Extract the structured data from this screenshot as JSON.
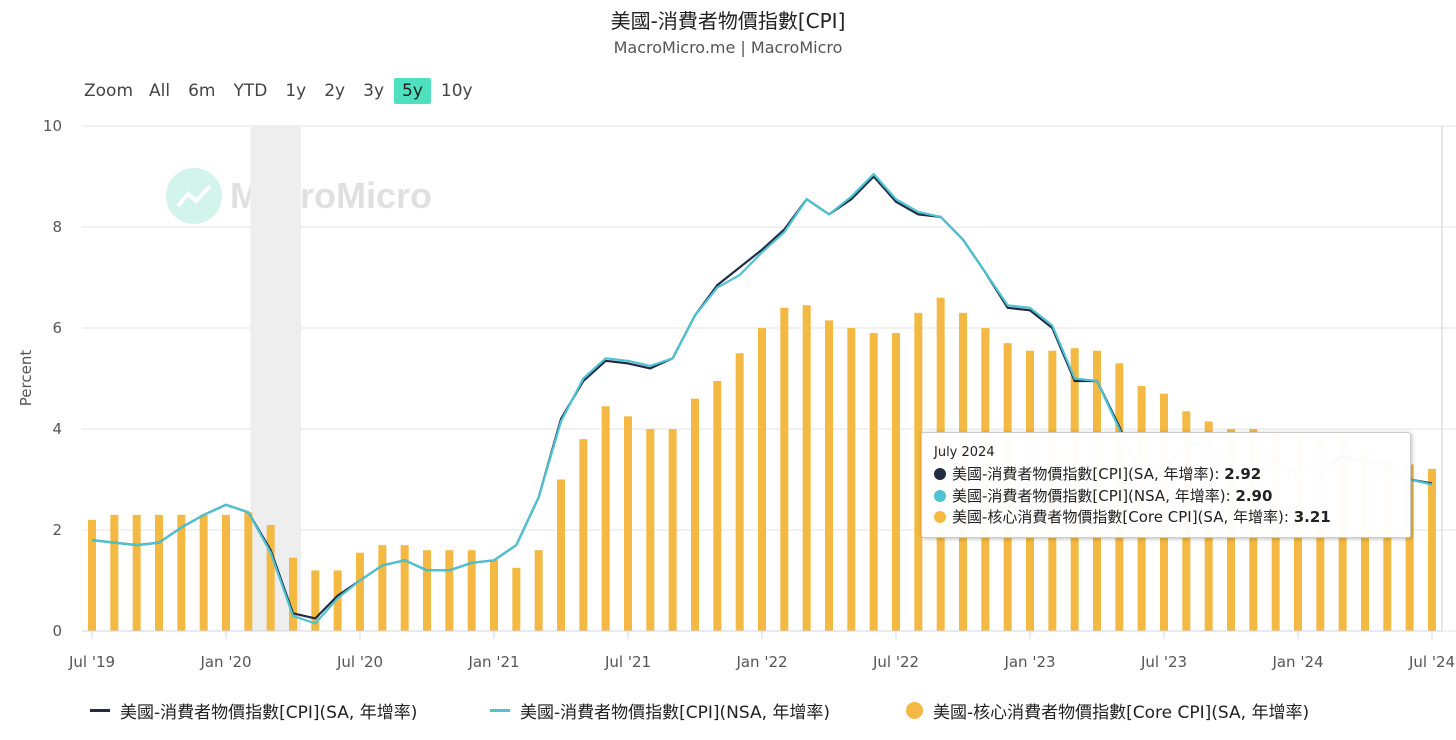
{
  "title": "美國-消費者物價指數[CPI]",
  "subtitle": "MacroMicro.me | MacroMicro",
  "watermark": "MacroMicro",
  "zoom": {
    "label": "Zoom",
    "options": [
      "All",
      "6m",
      "YTD",
      "1y",
      "2y",
      "3y",
      "5y",
      "10y"
    ],
    "selected": "5y"
  },
  "colors": {
    "sa": "#222b44",
    "nsa": "#4dc3d3",
    "core": "#f4b942",
    "recession": "#eeeeee",
    "zoom_active": "#4fe0bf"
  },
  "tooltip": {
    "header": "July 2024",
    "rows": [
      {
        "label": "美國-消費者物價指數[CPI](SA, 年增率)",
        "value": "2.92",
        "color": "#222b44"
      },
      {
        "label": "美國-消費者物價指數[CPI](NSA, 年增率)",
        "value": "2.90",
        "color": "#4dc3d3"
      },
      {
        "label": "美國-核心消費者物價指數[Core CPI](SA, 年增率)",
        "value": "3.21",
        "color": "#f4b942"
      }
    ]
  },
  "legend": [
    {
      "label": "美國-消費者物價指數[CPI](SA, 年增率)",
      "color": "#222b44",
      "type": "line"
    },
    {
      "label": "美國-消費者物價指數[CPI](NSA, 年增率)",
      "color": "#4dc3d3",
      "type": "line"
    },
    {
      "label": "美國-核心消費者物價指數[Core CPI](SA, 年增率)",
      "color": "#f4b942",
      "type": "dot"
    }
  ],
  "chart_data": {
    "type": "bar",
    "ylabel": "Percent",
    "ylim": [
      0,
      10
    ],
    "yticks": [
      0,
      2,
      4,
      6,
      8,
      10
    ],
    "xtick_labels": [
      "Jul '19",
      "Jan '20",
      "Jul '20",
      "Jan '21",
      "Jul '21",
      "Jan '22",
      "Jul '22",
      "Jan '23",
      "Jul '23",
      "Jan '24",
      "Jul '24"
    ],
    "grid": true,
    "legend_position": "bottom",
    "recession_band": [
      "2020-02",
      "2020-04"
    ],
    "x": [
      "2019-07",
      "2019-08",
      "2019-09",
      "2019-10",
      "2019-11",
      "2019-12",
      "2020-01",
      "2020-02",
      "2020-03",
      "2020-04",
      "2020-05",
      "2020-06",
      "2020-07",
      "2020-08",
      "2020-09",
      "2020-10",
      "2020-11",
      "2020-12",
      "2021-01",
      "2021-02",
      "2021-03",
      "2021-04",
      "2021-05",
      "2021-06",
      "2021-07",
      "2021-08",
      "2021-09",
      "2021-10",
      "2021-11",
      "2021-12",
      "2022-01",
      "2022-02",
      "2022-03",
      "2022-04",
      "2022-05",
      "2022-06",
      "2022-07",
      "2022-08",
      "2022-09",
      "2022-10",
      "2022-11",
      "2022-12",
      "2023-01",
      "2023-02",
      "2023-03",
      "2023-04",
      "2023-05",
      "2023-06",
      "2023-07",
      "2023-08",
      "2023-09",
      "2023-10",
      "2023-11",
      "2023-12",
      "2024-01",
      "2024-02",
      "2024-03",
      "2024-04",
      "2024-05",
      "2024-06",
      "2024-07"
    ],
    "series": [
      {
        "name": "美國-消費者物價指數[CPI](SA, 年增率)",
        "type": "line",
        "values": [
          1.8,
          1.75,
          1.7,
          1.75,
          2.05,
          2.3,
          2.5,
          2.35,
          1.6,
          0.35,
          0.25,
          0.7,
          1.0,
          1.3,
          1.4,
          1.2,
          1.2,
          1.35,
          1.4,
          1.7,
          2.65,
          4.2,
          4.95,
          5.35,
          5.3,
          5.2,
          5.4,
          6.25,
          6.85,
          7.2,
          7.55,
          7.95,
          8.55,
          8.25,
          8.55,
          9.0,
          8.5,
          8.25,
          8.2,
          7.75,
          7.1,
          6.4,
          6.35,
          6.0,
          4.95,
          4.95,
          4.05,
          3.0,
          3.2,
          3.7,
          3.7,
          3.2,
          3.1,
          3.35,
          3.1,
          3.2,
          3.45,
          3.35,
          3.3,
          3.0,
          2.92
        ]
      },
      {
        "name": "美國-消費者物價指數[CPI](NSA, 年增率)",
        "type": "line",
        "values": [
          1.8,
          1.75,
          1.7,
          1.75,
          2.05,
          2.3,
          2.5,
          2.35,
          1.55,
          0.3,
          0.15,
          0.65,
          1.0,
          1.3,
          1.4,
          1.2,
          1.2,
          1.35,
          1.4,
          1.7,
          2.65,
          4.15,
          5.0,
          5.4,
          5.35,
          5.25,
          5.4,
          6.25,
          6.8,
          7.05,
          7.5,
          7.9,
          8.55,
          8.25,
          8.6,
          9.05,
          8.55,
          8.3,
          8.2,
          7.75,
          7.1,
          6.45,
          6.4,
          6.05,
          5.0,
          4.95,
          4.0,
          3.0,
          3.2,
          3.7,
          3.7,
          3.2,
          3.1,
          3.35,
          3.1,
          3.2,
          3.5,
          3.35,
          3.3,
          3.0,
          2.9
        ]
      },
      {
        "name": "美國-核心消費者物價指數[Core CPI](SA, 年增率)",
        "type": "bar",
        "values": [
          2.2,
          2.3,
          2.3,
          2.3,
          2.3,
          2.3,
          2.3,
          2.35,
          2.1,
          1.45,
          1.2,
          1.2,
          1.55,
          1.7,
          1.7,
          1.6,
          1.6,
          1.6,
          1.4,
          1.25,
          1.6,
          3.0,
          3.8,
          4.45,
          4.25,
          4.0,
          4.0,
          4.6,
          4.95,
          5.5,
          6.0,
          6.4,
          6.45,
          6.15,
          6.0,
          5.9,
          5.9,
          6.3,
          6.6,
          6.3,
          6.0,
          5.7,
          5.55,
          5.55,
          5.6,
          5.55,
          5.3,
          4.85,
          4.7,
          4.35,
          4.15,
          4.0,
          4.0,
          3.9,
          3.85,
          3.8,
          3.8,
          3.6,
          3.4,
          3.3,
          3.21
        ]
      }
    ]
  }
}
